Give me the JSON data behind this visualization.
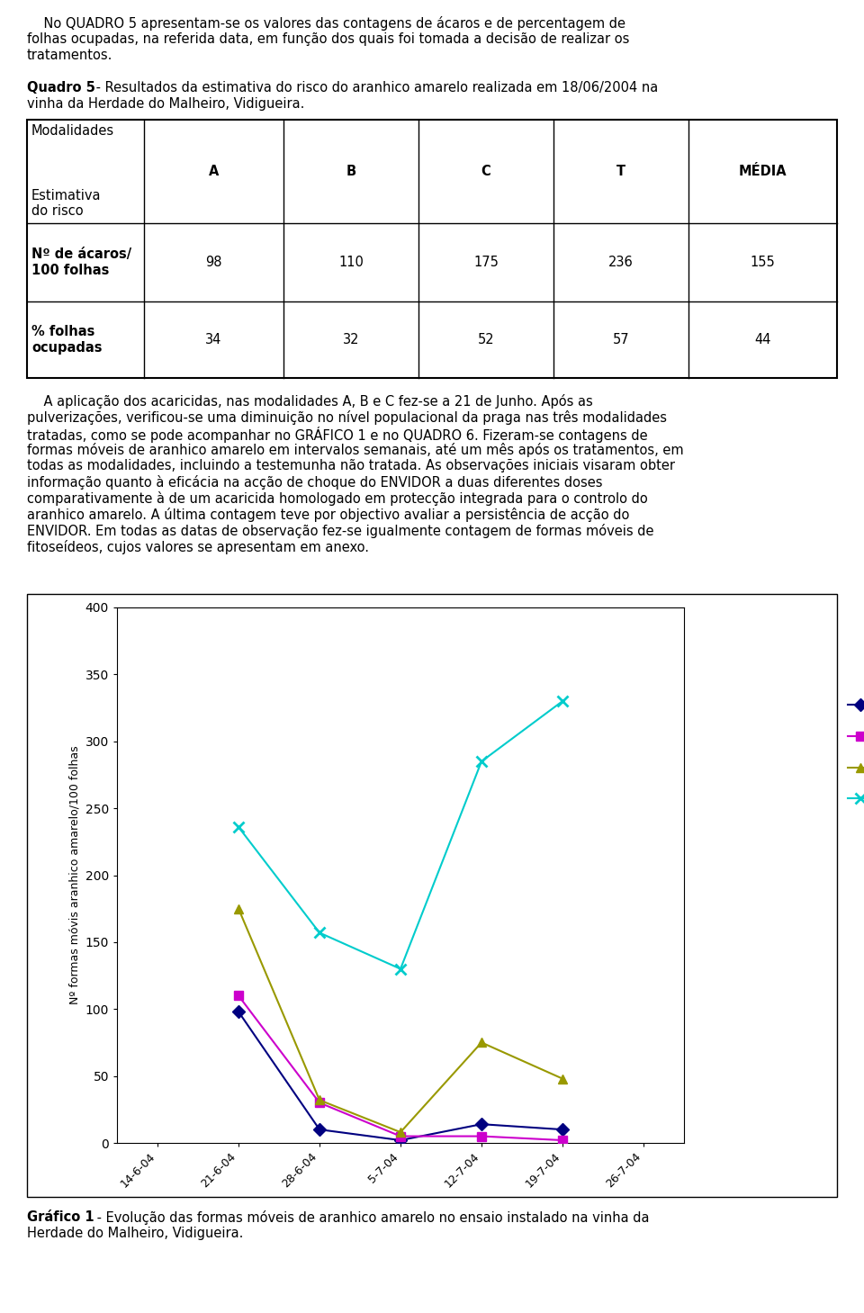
{
  "text_block1_line1": "    No QUADRO 5 apresentam-se os valores das contagens de ácaros e de percentagem de",
  "text_block1_line2": "folhas ocupadas, na referida data, em função dos quais foi tomada a decisão de realizar os",
  "text_block1_line3": "tratamentos.",
  "quadro_bold": "Quadro 5",
  "quadro_rest": " - Resultados da estimativa do risco do aranhico amarelo realizada em 18/06/2004 na",
  "quadro_line2": "vinha da Herdade do Malheiro, Vidigueira.",
  "table_header_labels": [
    "A",
    "B",
    "C",
    "T",
    "MÉDIA"
  ],
  "table_modalidades": "Modalidades",
  "table_estimativa": "Estimativa\ndo risco",
  "table_row2_label_line1": "Nº de ácaros/",
  "table_row2_label_line2": "100 folhas",
  "table_row3_label_line1": "% folhas",
  "table_row3_label_line2": "ocupadas",
  "row2_values": [
    "98",
    "110",
    "175",
    "236",
    "155"
  ],
  "row3_values": [
    "34",
    "32",
    "52",
    "57",
    "44"
  ],
  "body2_lines": [
    "    A aplicação dos acaricidas, nas modalidades A, B e C fez-se a 21 de Junho. Após as",
    "pulverizações, verificou-se uma diminuição no nível populacional da praga nas três modalidades",
    "tratadas, como se pode acompanhar no GRÁFICO 1 e no QUADRO 6. Fizeram-se contagens de",
    "formas móveis de aranhico amarelo em intervalos semanais, até um mês após os tratamentos, em",
    "todas as modalidades, incluindo a testemunha não tratada. As observações iniciais visaram obter",
    "informação quanto à eficácia na acção de choque do ENVIDOR a duas diferentes doses",
    "comparativamente à de um acaricida homologado em protecção integrada para o controlo do",
    "aranhico amarelo. A última contagem teve por objectivo avaliar a persistência de acção do",
    "ENVIDOR. Em todas as datas de observação fez-se igualmente contagem de formas móveis de",
    "fitoseídeos, cujos valores se apresentam em anexo."
  ],
  "x_labels": [
    "14-6-04",
    "21-6-04",
    "28-6-04",
    "5-7-04",
    "12-7-04",
    "19-7-04",
    "26-7-04"
  ],
  "series_A": [
    null,
    98,
    10,
    2,
    14,
    10,
    null
  ],
  "series_B": [
    null,
    110,
    30,
    5,
    5,
    2,
    null
  ],
  "series_C": [
    null,
    175,
    32,
    8,
    75,
    48,
    null
  ],
  "series_T": [
    null,
    236,
    157,
    130,
    285,
    330,
    null
  ],
  "color_A": "#000080",
  "color_B": "#cc00cc",
  "color_C": "#999900",
  "color_T": "#00cccc",
  "marker_A": "D",
  "marker_B": "s",
  "marker_C": "^",
  "marker_T": "x",
  "ylabel": "Nº formas móvis aranhico amarelo/100 folhas",
  "ylim": [
    0,
    400
  ],
  "yticks": [
    0,
    50,
    100,
    150,
    200,
    250,
    300,
    350,
    400
  ],
  "caption_bold": "Gráfico 1",
  "caption_rest": " - Evolução das formas móveis de aranhico amarelo no ensaio instalado na vinha da",
  "caption_line2": "Herdade do Malheiro, Vidigueira.",
  "background_color": "#ffffff"
}
